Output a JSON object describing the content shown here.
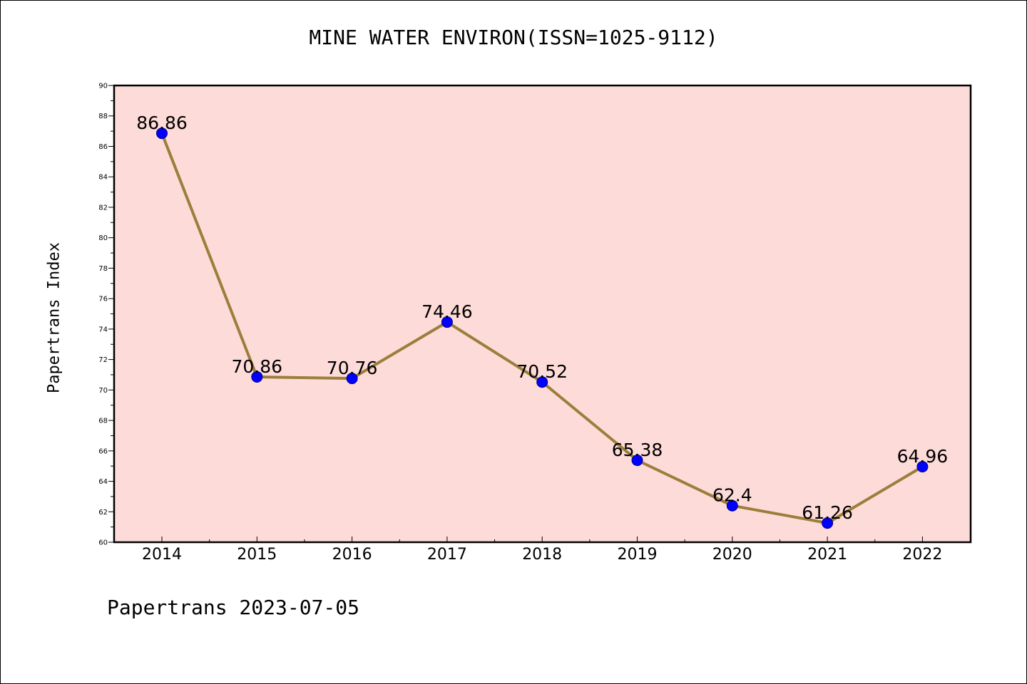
{
  "chart_data": {
    "type": "line",
    "title": "MINE WATER ENVIRON(ISSN=1025-9112)",
    "ylabel": "Papertrans Index",
    "xlabel": "",
    "categories": [
      "2014",
      "2015",
      "2016",
      "2017",
      "2018",
      "2019",
      "2020",
      "2021",
      "2022"
    ],
    "series": [
      {
        "values": [
          86.86,
          70.86,
          70.76,
          74.46,
          70.52,
          65.38,
          62.4,
          61.26,
          64.96
        ],
        "labels": [
          "86.86",
          "70.86",
          "70.76",
          "74.46",
          "70.52",
          "65.38",
          "62.4",
          "61.26",
          "64.96"
        ]
      }
    ],
    "ylim": [
      60,
      90
    ],
    "yticks": [
      "60",
      "62",
      "64",
      "66",
      "68",
      "70",
      "72",
      "74",
      "76",
      "78",
      "80",
      "82",
      "84",
      "86",
      "88",
      "90"
    ],
    "grid": false,
    "legend": "none"
  },
  "footer": {
    "note": "Papertrans 2023-07-05"
  },
  "colors": {
    "plot_background": "#fddbd8",
    "line": "#9c7e3c",
    "marker_fill": "#0000ff",
    "marker_stroke": "#00008b"
  }
}
